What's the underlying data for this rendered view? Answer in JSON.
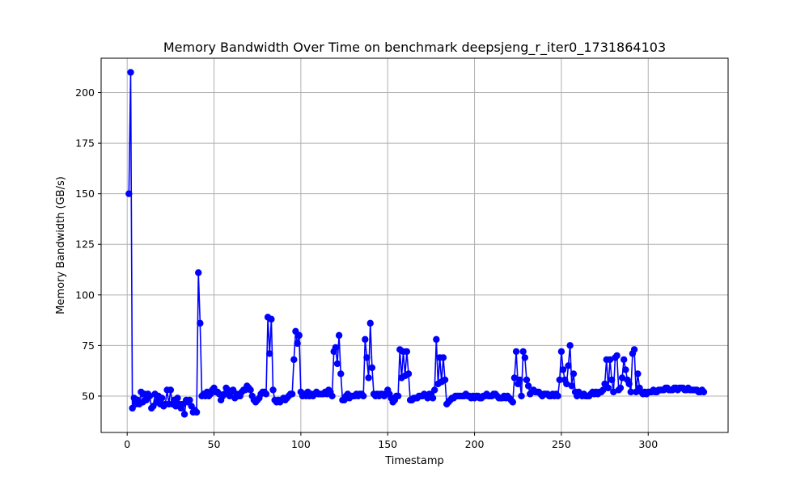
{
  "chart_data": {
    "type": "line",
    "title": "Memory Bandwidth Over Time on benchmark deepsjeng_r_iter0_1731864103",
    "xlabel": "Timestamp",
    "ylabel": "Memory Bandwidth (GB/s)",
    "xlim": [
      -15,
      346
    ],
    "ylim": [
      32,
      217
    ],
    "x_ticks": [
      0,
      50,
      100,
      150,
      200,
      250,
      300
    ],
    "y_ticks": [
      50,
      75,
      100,
      125,
      150,
      175,
      200
    ],
    "grid": true,
    "series": [
      {
        "color": "#0000ff",
        "marker": "circle",
        "values": [
          150,
          210,
          44,
          49,
          46,
          48,
          46,
          52,
          47,
          51,
          48,
          51,
          50,
          44,
          45,
          51,
          47,
          50,
          46,
          49,
          45,
          46,
          53,
          46,
          53,
          46,
          48,
          45,
          49,
          46,
          44,
          46,
          41,
          48,
          47,
          48,
          45,
          42,
          43,
          42,
          111,
          86,
          50,
          51,
          50,
          52,
          50,
          51,
          53,
          54,
          52,
          52,
          51,
          48,
          50,
          51,
          54,
          53,
          50,
          52,
          53,
          49,
          51,
          50,
          50,
          52,
          53,
          53,
          55,
          54,
          53,
          50,
          48,
          47,
          48,
          49,
          51,
          52,
          52,
          51,
          89,
          71,
          88,
          53,
          48,
          47,
          48,
          47,
          48,
          49,
          48,
          49,
          50,
          51,
          51,
          68,
          82,
          76,
          80,
          52,
          50,
          51,
          50,
          52,
          50,
          51,
          50,
          51,
          52,
          51,
          51,
          51,
          51,
          52,
          51,
          53,
          52,
          50,
          72,
          74,
          66,
          80,
          61,
          48,
          48,
          50,
          51,
          49,
          50,
          50,
          50,
          51,
          50,
          51,
          51,
          50,
          78,
          69,
          59,
          86,
          64,
          51,
          50,
          51,
          50,
          51,
          51,
          50,
          51,
          53,
          51,
          49,
          47,
          48,
          50,
          50,
          73,
          59,
          72,
          60,
          72,
          61,
          48,
          48,
          49,
          49,
          49,
          50,
          50,
          50,
          51,
          50,
          49,
          51,
          51,
          49,
          53,
          78,
          56,
          69,
          57,
          69,
          58,
          46,
          47,
          48,
          49,
          49,
          50,
          50,
          50,
          50,
          50,
          50,
          51,
          50,
          50,
          49,
          50,
          49,
          50,
          50,
          49,
          49,
          50,
          50,
          51,
          50,
          50,
          50,
          51,
          51,
          50,
          49,
          49,
          49,
          50,
          49,
          50,
          49,
          48,
          47,
          59,
          72,
          56,
          58,
          50,
          72,
          69,
          58,
          55,
          51,
          52,
          53,
          52,
          52,
          52,
          51,
          50,
          51,
          51,
          51,
          50,
          50,
          51,
          50,
          51,
          50,
          58,
          72,
          63,
          58,
          56,
          65,
          75,
          55,
          61,
          52,
          50,
          52,
          51,
          50,
          51,
          50,
          50,
          50,
          51,
          52,
          51,
          52,
          51,
          52,
          52,
          53,
          56,
          68,
          54,
          68,
          58,
          52,
          69,
          70,
          53,
          54,
          59,
          68,
          63,
          58,
          56,
          52,
          71,
          73,
          52,
          61,
          54,
          52,
          51,
          52,
          51,
          52,
          52,
          52,
          53,
          52,
          52,
          53,
          53,
          53,
          53,
          54,
          54,
          53,
          53,
          53,
          54,
          54,
          53,
          54,
          54,
          54,
          53,
          53,
          54,
          53,
          53,
          53,
          53,
          53,
          52,
          52,
          53,
          52
        ]
      }
    ]
  }
}
